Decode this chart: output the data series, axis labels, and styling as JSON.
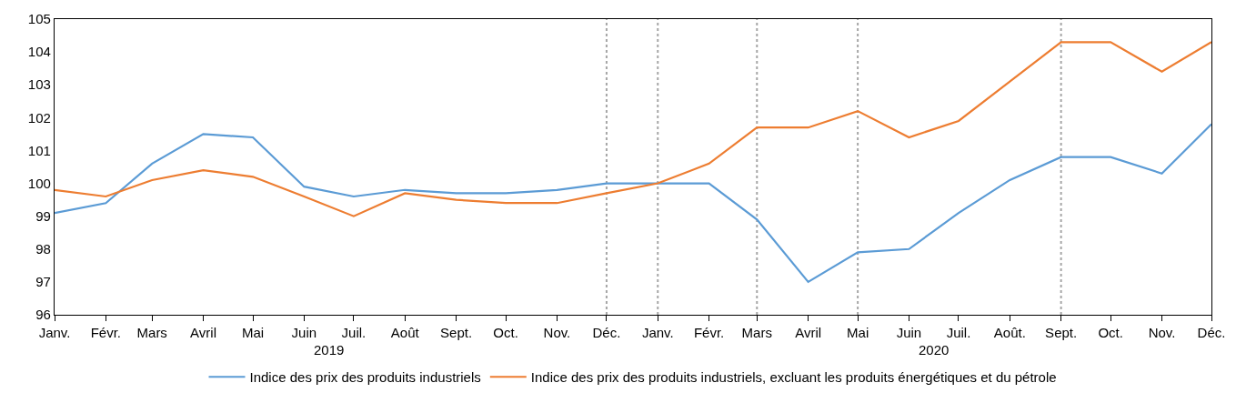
{
  "chart_data": {
    "type": "line",
    "x": [
      "2019-01",
      "2019-02",
      "2019-03",
      "2019-04",
      "2019-05",
      "2019-06",
      "2019-07",
      "2019-08",
      "2019-09",
      "2019-10",
      "2019-11",
      "2019-12",
      "2020-01",
      "2020-02",
      "2020-03",
      "2020-04",
      "2020-05",
      "2020-06",
      "2020-07",
      "2020-08",
      "2020-09",
      "2020-10",
      "2020-11",
      "2020-12"
    ],
    "series": [
      {
        "name": "Indice des prix des produits industriels",
        "color": "#5b9bd5",
        "values": [
          99.1,
          99.4,
          100.6,
          101.5,
          101.4,
          99.9,
          99.6,
          99.8,
          99.7,
          99.7,
          99.8,
          100.0,
          100.0,
          100.0,
          98.9,
          97.0,
          97.9,
          98.0,
          99.1,
          100.1,
          100.8,
          100.8,
          100.3,
          101.8
        ]
      },
      {
        "name": "Indice des prix des produits industriels, excluant les produits énergétiques et du pétrole",
        "color": "#ed7d31",
        "values": [
          99.8,
          99.6,
          100.1,
          100.4,
          100.2,
          99.6,
          99.0,
          99.7,
          99.5,
          99.4,
          99.4,
          99.7,
          100.0,
          100.6,
          101.7,
          101.7,
          102.2,
          101.4,
          101.9,
          103.1,
          104.3,
          104.3,
          103.4,
          104.3
        ]
      }
    ],
    "xlim": [
      "2019-01",
      "2020-12"
    ],
    "xticks": [
      {
        "value": "2019-01",
        "label": "Janv."
      },
      {
        "value": "2019-02",
        "label": "Févr."
      },
      {
        "value": "2019-03",
        "label": "Mars"
      },
      {
        "value": "2019-04",
        "label": "Avril"
      },
      {
        "value": "2019-05",
        "label": "Mai"
      },
      {
        "value": "2019-06",
        "label": "Juin"
      },
      {
        "value": "2019-07",
        "label": "Juil."
      },
      {
        "value": "2019-08",
        "label": "Août"
      },
      {
        "value": "2019-09",
        "label": "Sept."
      },
      {
        "value": "2019-10",
        "label": "Oct."
      },
      {
        "value": "2019-11",
        "label": "Nov."
      },
      {
        "value": "2019-12",
        "label": "Déc."
      },
      {
        "value": "2020-01",
        "label": "Janv."
      },
      {
        "value": "2020-02",
        "label": "Févr."
      },
      {
        "value": "2020-03",
        "label": "Mars"
      },
      {
        "value": "2020-04",
        "label": "Avril"
      },
      {
        "value": "2020-05",
        "label": "Mai"
      },
      {
        "value": "2020-06",
        "label": "Juin"
      },
      {
        "value": "2020-07",
        "label": "Juil."
      },
      {
        "value": "2020-08",
        "label": "Août."
      },
      {
        "value": "2020-09",
        "label": "Sept."
      },
      {
        "value": "2020-10",
        "label": "Oct."
      },
      {
        "value": "2020-11",
        "label": "Nov."
      },
      {
        "value": "2020-12",
        "label": "Déc."
      }
    ],
    "ylim": [
      96,
      105
    ],
    "yticks": [
      96,
      97,
      98,
      99,
      100,
      101,
      102,
      103,
      104,
      105
    ],
    "ref_lines": [
      {
        "axis": "x",
        "value": "2019-12",
        "color": "#a6a6a6",
        "line_style": "dotted"
      },
      {
        "axis": "x",
        "value": "2020-01",
        "color": "#a6a6a6",
        "line_style": "dotted"
      },
      {
        "axis": "x",
        "value": "2020-03",
        "color": "#a6a6a6",
        "line_style": "dotted"
      },
      {
        "axis": "x",
        "value": "2020-05",
        "color": "#a6a6a6",
        "line_style": "dotted"
      },
      {
        "axis": "x",
        "value": "2020-09",
        "color": "#a6a6a6",
        "line_style": "dotted"
      }
    ],
    "annotations": [
      "2019",
      "2020"
    ],
    "grid": false,
    "legend": "bottom",
    "marker": "none",
    "line_style": "solid"
  }
}
